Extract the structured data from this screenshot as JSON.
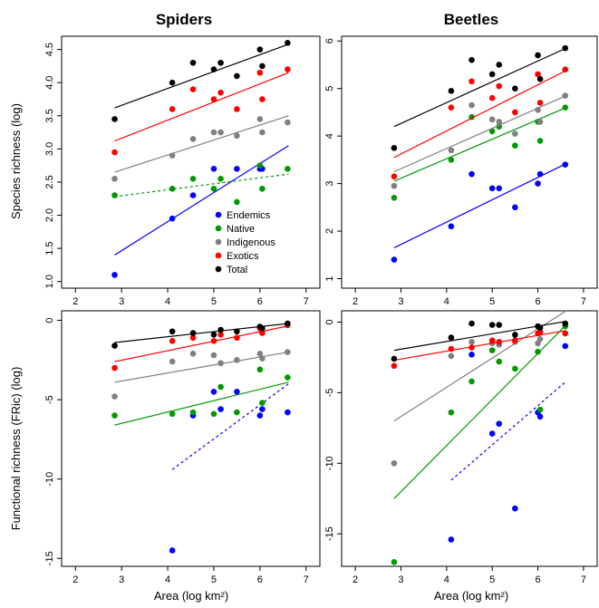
{
  "figure": {
    "col_titles": [
      "Spiders",
      "Beetles"
    ],
    "row_ylabels": [
      "Species richness (log)",
      "Functional richness (FRic) (log)"
    ],
    "xlabel": "Area (log km²)"
  },
  "legend": {
    "panel": 0,
    "entries": [
      {
        "name": "Endemics",
        "color": "#0000ff"
      },
      {
        "name": "Native",
        "color": "#009900"
      },
      {
        "name": "Indigenous",
        "color": "#808080"
      },
      {
        "name": "Exotics",
        "color": "#ff0000"
      },
      {
        "name": "Total",
        "color": "#000000"
      }
    ]
  },
  "chart_data": [
    {
      "type": "scatter",
      "panel": "Spiders species richness",
      "xlim": [
        1.7,
        7.3
      ],
      "ylim": [
        0.9,
        4.7
      ],
      "xticks": [
        2,
        3,
        4,
        5,
        6,
        7
      ],
      "yticks": [
        1.0,
        1.5,
        2.0,
        2.5,
        3.0,
        3.5,
        4.0,
        4.5
      ],
      "series": [
        {
          "name": "Endemics",
          "color": "#0000ff",
          "x": [
            2.85,
            4.1,
            4.55,
            5.0,
            5.5,
            6.0,
            6.05
          ],
          "y": [
            1.1,
            1.95,
            2.3,
            2.7,
            2.7,
            2.7,
            2.7
          ],
          "fit": {
            "x": [
              2.85,
              6.62
            ],
            "y": [
              1.4,
              3.05
            ],
            "dashed": false
          }
        },
        {
          "name": "Native",
          "color": "#009900",
          "x": [
            2.85,
            4.1,
            4.55,
            5.0,
            5.15,
            5.5,
            6.0,
            6.05,
            6.6
          ],
          "y": [
            2.3,
            2.4,
            2.55,
            2.4,
            2.55,
            2.2,
            2.75,
            2.4,
            2.7
          ],
          "fit": {
            "x": [
              2.85,
              6.62
            ],
            "y": [
              2.28,
              2.62
            ],
            "dashed": true
          }
        },
        {
          "name": "Indigenous",
          "color": "#808080",
          "x": [
            2.85,
            4.1,
            4.55,
            5.0,
            5.15,
            5.5,
            6.0,
            6.05,
            6.6
          ],
          "y": [
            2.55,
            2.9,
            3.15,
            3.25,
            3.25,
            3.2,
            3.45,
            3.25,
            3.4
          ],
          "fit": {
            "x": [
              2.85,
              6.62
            ],
            "y": [
              2.65,
              3.5
            ],
            "dashed": false
          }
        },
        {
          "name": "Exotics",
          "color": "#ff0000",
          "x": [
            2.85,
            4.1,
            4.55,
            5.0,
            5.15,
            5.5,
            6.0,
            6.05,
            6.6
          ],
          "y": [
            2.95,
            3.6,
            3.9,
            3.75,
            3.85,
            3.6,
            4.15,
            3.75,
            4.2
          ],
          "fit": {
            "x": [
              2.85,
              6.62
            ],
            "y": [
              3.12,
              4.15
            ],
            "dashed": false
          }
        },
        {
          "name": "Total",
          "color": "#000000",
          "x": [
            2.85,
            4.1,
            4.55,
            5.0,
            5.15,
            5.5,
            6.0,
            6.05,
            6.6
          ],
          "y": [
            3.45,
            4.0,
            4.3,
            4.2,
            4.3,
            4.1,
            4.5,
            4.25,
            4.6
          ],
          "fit": {
            "x": [
              2.85,
              6.62
            ],
            "y": [
              3.62,
              4.58
            ],
            "dashed": false
          }
        }
      ]
    },
    {
      "type": "scatter",
      "panel": "Beetles species richness",
      "xlim": [
        1.7,
        7.3
      ],
      "ylim": [
        0.8,
        6.1
      ],
      "xticks": [
        2,
        3,
        4,
        5,
        6,
        7
      ],
      "yticks": [
        1,
        2,
        3,
        4,
        5,
        6
      ],
      "series": [
        {
          "name": "Endemics",
          "color": "#0000ff",
          "x": [
            2.85,
            4.1,
            4.55,
            5.0,
            5.15,
            5.5,
            6.0,
            6.05,
            6.6
          ],
          "y": [
            1.4,
            2.1,
            3.2,
            2.9,
            2.9,
            2.5,
            3.0,
            3.2,
            3.4
          ],
          "fit": {
            "x": [
              2.85,
              6.62
            ],
            "y": [
              1.65,
              3.42
            ],
            "dashed": false
          }
        },
        {
          "name": "Native",
          "color": "#009900",
          "x": [
            2.85,
            4.1,
            4.55,
            5.0,
            5.15,
            5.5,
            6.0,
            6.05,
            6.6
          ],
          "y": [
            2.7,
            3.5,
            4.4,
            4.1,
            4.2,
            3.8,
            4.3,
            3.9,
            4.6
          ],
          "fit": {
            "x": [
              2.85,
              6.62
            ],
            "y": [
              3.05,
              4.6
            ],
            "dashed": false
          }
        },
        {
          "name": "Indigenous",
          "color": "#808080",
          "x": [
            2.85,
            4.1,
            4.55,
            5.0,
            5.15,
            5.5,
            6.0,
            6.05,
            6.6
          ],
          "y": [
            2.95,
            3.7,
            4.65,
            4.35,
            4.3,
            4.05,
            4.55,
            4.3,
            4.85
          ],
          "fit": {
            "x": [
              2.85,
              6.62
            ],
            "y": [
              3.25,
              4.85
            ],
            "dashed": false
          }
        },
        {
          "name": "Exotics",
          "color": "#ff0000",
          "x": [
            2.85,
            4.1,
            4.55,
            5.0,
            5.15,
            5.5,
            6.0,
            6.05,
            6.6
          ],
          "y": [
            3.15,
            4.6,
            5.15,
            4.8,
            5.05,
            4.5,
            5.3,
            4.7,
            5.4
          ],
          "fit": {
            "x": [
              2.85,
              6.62
            ],
            "y": [
              3.55,
              5.38
            ],
            "dashed": false
          }
        },
        {
          "name": "Total",
          "color": "#000000",
          "x": [
            2.85,
            4.1,
            4.55,
            5.0,
            5.15,
            5.5,
            6.0,
            6.05,
            6.6
          ],
          "y": [
            3.75,
            4.95,
            5.6,
            5.3,
            5.5,
            5.0,
            5.7,
            5.2,
            5.85
          ],
          "fit": {
            "x": [
              2.85,
              6.62
            ],
            "y": [
              4.2,
              5.85
            ],
            "dashed": false
          }
        }
      ]
    },
    {
      "type": "scatter",
      "panel": "Spiders functional richness",
      "xlim": [
        1.7,
        7.3
      ],
      "ylim": [
        -15.5,
        0.6
      ],
      "xticks": [
        2,
        3,
        4,
        5,
        6,
        7
      ],
      "yticks": [
        0,
        -5,
        -10,
        -15
      ],
      "series": [
        {
          "name": "Endemics",
          "color": "#0000ff",
          "x": [
            4.1,
            4.55,
            5.0,
            5.15,
            5.5,
            6.0,
            6.05,
            6.6
          ],
          "y": [
            -14.5,
            -6.0,
            -4.5,
            -5.6,
            -4.5,
            -6.0,
            -5.6,
            -5.8
          ],
          "fit": {
            "x": [
              4.1,
              6.62
            ],
            "y": [
              -9.4,
              -4.0
            ],
            "dashed": true
          }
        },
        {
          "name": "Native",
          "color": "#009900",
          "x": [
            2.85,
            4.1,
            4.55,
            5.0,
            5.15,
            5.5,
            6.0,
            6.05,
            6.6
          ],
          "y": [
            -6.0,
            -5.9,
            -5.8,
            -5.9,
            -4.2,
            -5.8,
            -3.1,
            -5.2,
            -3.6
          ],
          "fit": {
            "x": [
              2.85,
              6.62
            ],
            "y": [
              -6.6,
              -3.9
            ],
            "dashed": false
          }
        },
        {
          "name": "Indigenous",
          "color": "#808080",
          "x": [
            2.85,
            4.1,
            4.55,
            5.0,
            5.15,
            5.5,
            6.0,
            6.05,
            6.6
          ],
          "y": [
            -4.8,
            -2.6,
            -2.1,
            -2.2,
            -2.7,
            -2.5,
            -2.1,
            -2.4,
            -2.0
          ],
          "fit": {
            "x": [
              2.85,
              6.62
            ],
            "y": [
              -3.9,
              -2.0
            ],
            "dashed": false
          }
        },
        {
          "name": "Exotics",
          "color": "#ff0000",
          "x": [
            2.85,
            4.1,
            4.55,
            5.0,
            5.15,
            5.5,
            6.0,
            6.05,
            6.6
          ],
          "y": [
            -3.0,
            -1.3,
            -1.1,
            -1.3,
            -0.9,
            -1.1,
            -0.5,
            -0.8,
            -0.3
          ],
          "fit": {
            "x": [
              2.85,
              6.62
            ],
            "y": [
              -2.6,
              -0.35
            ],
            "dashed": false
          }
        },
        {
          "name": "Total",
          "color": "#000000",
          "x": [
            2.85,
            4.1,
            4.55,
            5.0,
            5.15,
            5.5,
            6.0,
            6.05,
            6.6
          ],
          "y": [
            -1.6,
            -0.7,
            -0.8,
            -0.9,
            -0.6,
            -0.7,
            -0.4,
            -0.5,
            -0.2
          ],
          "fit": {
            "x": [
              2.85,
              6.62
            ],
            "y": [
              -1.4,
              -0.2
            ],
            "dashed": false
          }
        }
      ]
    },
    {
      "type": "scatter",
      "panel": "Beetles functional richness",
      "xlim": [
        1.7,
        7.3
      ],
      "ylim": [
        -17.3,
        0.8
      ],
      "xticks": [
        2,
        3,
        4,
        5,
        6,
        7
      ],
      "yticks": [
        0,
        -5,
        -10,
        -15
      ],
      "series": [
        {
          "name": "Endemics",
          "color": "#0000ff",
          "x": [
            4.1,
            4.55,
            5.0,
            5.15,
            5.5,
            6.0,
            6.05,
            6.6
          ],
          "y": [
            -15.4,
            -2.3,
            -7.9,
            -7.2,
            -13.2,
            -6.4,
            -6.7,
            -1.7
          ],
          "fit": {
            "x": [
              4.1,
              6.62
            ],
            "y": [
              -11.2,
              -4.2
            ],
            "dashed": true
          }
        },
        {
          "name": "Native",
          "color": "#009900",
          "x": [
            2.85,
            4.1,
            4.55,
            5.0,
            5.15,
            5.5,
            6.0,
            6.05,
            6.6
          ],
          "y": [
            -17.0,
            -6.4,
            -4.2,
            -2.0,
            -2.8,
            -3.3,
            -2.1,
            -6.2,
            -0.3
          ],
          "fit": {
            "x": [
              2.85,
              6.62
            ],
            "y": [
              -12.5,
              -0.2
            ],
            "dashed": false
          }
        },
        {
          "name": "Indigenous",
          "color": "#808080",
          "x": [
            2.85,
            4.1,
            4.55,
            5.0,
            5.15,
            5.5,
            6.0,
            6.05,
            6.6
          ],
          "y": [
            -10.0,
            -2.4,
            -1.4,
            -1.5,
            -1.6,
            -1.4,
            -1.5,
            -1.2,
            -0.8
          ],
          "fit": {
            "x": [
              2.85,
              6.62
            ],
            "y": [
              -7.0,
              0.8
            ],
            "dashed": false
          }
        },
        {
          "name": "Exotics",
          "color": "#ff0000",
          "x": [
            2.85,
            4.1,
            4.55,
            5.0,
            5.15,
            5.5,
            6.0,
            6.05,
            6.6
          ],
          "y": [
            -3.1,
            -1.9,
            -1.8,
            -1.3,
            -1.4,
            -1.3,
            -0.8,
            -0.7,
            -0.8
          ],
          "fit": {
            "x": [
              2.85,
              6.62
            ],
            "y": [
              -2.7,
              -0.6
            ],
            "dashed": false
          }
        },
        {
          "name": "Total",
          "color": "#000000",
          "x": [
            2.85,
            4.1,
            4.55,
            5.0,
            5.15,
            5.5,
            6.0,
            6.05,
            6.6
          ],
          "y": [
            -2.6,
            -1.1,
            -0.1,
            -0.2,
            -0.2,
            -0.9,
            -0.3,
            -0.4,
            -0.1
          ],
          "fit": {
            "x": [
              2.85,
              6.62
            ],
            "y": [
              -2.0,
              0.05
            ],
            "dashed": false
          }
        }
      ]
    }
  ]
}
